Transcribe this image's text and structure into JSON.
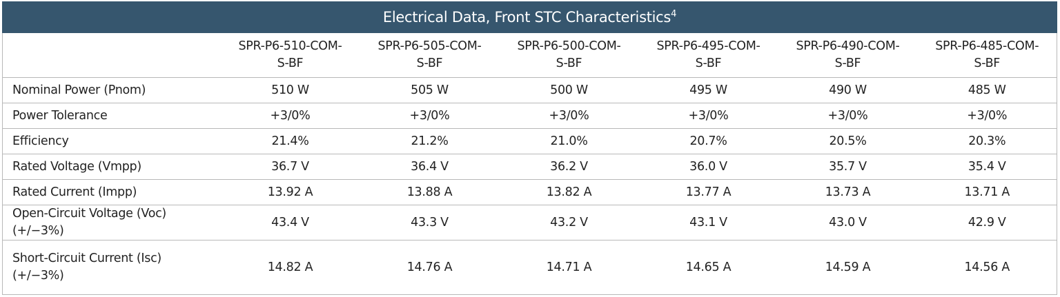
{
  "title": "Electrical Data,  Front STC Characteristics",
  "title_footnote": "4",
  "models": [
    {
      "line1": "SPR-P6-510-COM-",
      "line2": "S-BF"
    },
    {
      "line1": "SPR-P6-505-COM-",
      "line2": "S-BF"
    },
    {
      "line1": "SPR-P6-500-COM-",
      "line2": "S-BF"
    },
    {
      "line1": "SPR-P6-495-COM-",
      "line2": "S-BF"
    },
    {
      "line1": "SPR-P6-490-COM-",
      "line2": "S-BF"
    },
    {
      "line1": "SPR-P6-485-COM-",
      "line2": "S-BF"
    }
  ],
  "rows": [
    {
      "label": "Nominal Power (Pnom)",
      "values": [
        "510 W",
        "505 W",
        "500 W",
        "495 W",
        "490 W",
        "485 W"
      ]
    },
    {
      "label": "Power Tolerance",
      "values": [
        "+3/0%",
        "+3/0%",
        "+3/0%",
        "+3/0%",
        "+3/0%",
        "+3/0%"
      ]
    },
    {
      "label": "Efficiency",
      "values": [
        "21.4%",
        "21.2%",
        "21.0%",
        "20.7%",
        "20.5%",
        "20.3%"
      ]
    },
    {
      "label": "Rated Voltage (Vmpp)",
      "values": [
        "36.7 V",
        "36.4 V",
        "36.2 V",
        "36.0 V",
        "35.7 V",
        "35.4 V"
      ]
    },
    {
      "label": "Rated Current (Impp)",
      "values": [
        "13.92 A",
        "13.88 A",
        "13.82 A",
        "13.77 A",
        "13.73 A",
        "13.71 A"
      ]
    },
    {
      "label": "Open-Circuit Voltage (Voc)",
      "label2": "(+/−3%)",
      "values": [
        "43.4 V",
        "43.3 V",
        "43.2 V",
        "43.1 V",
        "43.0 V",
        "42.9 V"
      ]
    },
    {
      "label": "Short-Circuit Current (Isc)",
      "label2": "(+/−3%)",
      "values": [
        "14.82 A",
        "14.76 A",
        "14.71 A",
        "14.65 A",
        "14.59 A",
        "14.56 A"
      ]
    }
  ]
}
